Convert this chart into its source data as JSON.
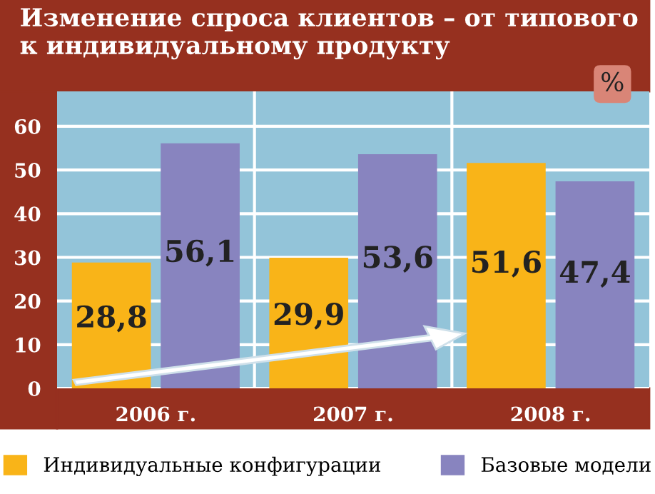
{
  "chart_data": {
    "type": "bar",
    "title": "Изменение спроса клиентов – от типового к индивидуальному продукту",
    "annotations": [
      "%"
    ],
    "categories": [
      "2006 г.",
      "2007 г.",
      "2008 г."
    ],
    "series": [
      {
        "name": "Индивидуальные конфигурации",
        "color": "#f9b418",
        "values": [
          28.8,
          29.9,
          51.6
        ],
        "value_labels": [
          "28,8",
          "29,9",
          "51,6"
        ]
      },
      {
        "name": "Базовые модели",
        "color": "#8884bf",
        "values": [
          56.1,
          53.6,
          47.4
        ],
        "value_labels": [
          "56,1",
          "53,6",
          "47,4"
        ]
      }
    ],
    "ylim": [
      0,
      68
    ],
    "yticks": [
      0,
      10,
      20,
      30,
      40,
      50,
      60
    ],
    "grid": "y",
    "legend": "bottom"
  }
}
